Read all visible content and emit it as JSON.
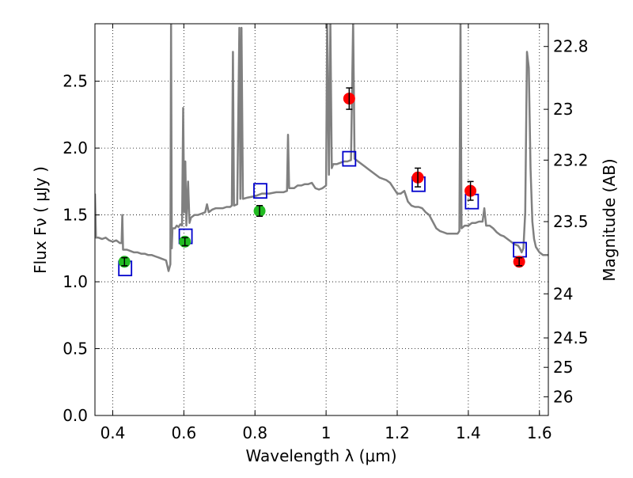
{
  "chart_data": {
    "type": "scatter",
    "xlabel": "Wavelength  λ (μm)",
    "ylabel": "Flux  Fν  ( μJy )",
    "y2label": "Magnitude (AB)",
    "xlim": [
      0.35,
      1.625
    ],
    "ylim": [
      0.0,
      2.93
    ],
    "grid": true,
    "x_ticks": [
      0.4,
      0.6,
      0.8,
      1.0,
      1.2,
      1.4,
      1.6
    ],
    "x_tick_labels": [
      "0.4",
      "0.6",
      "0.8",
      "1",
      "1.2",
      "1.4",
      "1.6"
    ],
    "y_ticks": [
      0.0,
      0.5,
      1.0,
      1.5,
      2.0,
      2.5
    ],
    "y_tick_labels": [
      "0.0",
      "0.5",
      "1.0",
      "1.5",
      "2.0",
      "2.5"
    ],
    "y2_ticks": [
      {
        "label": "22.8",
        "flux": 2.76
      },
      {
        "label": "23",
        "flux": 2.29
      },
      {
        "label": "23.2",
        "flux": 1.91
      },
      {
        "label": "23.5",
        "flux": 1.45
      },
      {
        "label": "24",
        "flux": 0.91
      },
      {
        "label": "24.5",
        "flux": 0.58
      },
      {
        "label": "25",
        "flux": 0.36
      },
      {
        "label": "26",
        "flux": 0.14
      }
    ],
    "series": [
      {
        "type": "line",
        "color": "#808080",
        "points": [
          [
            0.35,
            1.66
          ],
          [
            0.353,
            1.33
          ],
          [
            0.36,
            1.33
          ],
          [
            0.37,
            1.32
          ],
          [
            0.38,
            1.33
          ],
          [
            0.39,
            1.31
          ],
          [
            0.4,
            1.3
          ],
          [
            0.41,
            1.31
          ],
          [
            0.42,
            1.29
          ],
          [
            0.425,
            1.29
          ],
          [
            0.427,
            1.5
          ],
          [
            0.429,
            1.24
          ],
          [
            0.44,
            1.24
          ],
          [
            0.45,
            1.23
          ],
          [
            0.46,
            1.22
          ],
          [
            0.47,
            1.22
          ],
          [
            0.48,
            1.21
          ],
          [
            0.49,
            1.21
          ],
          [
            0.5,
            1.2
          ],
          [
            0.51,
            1.2
          ],
          [
            0.52,
            1.19
          ],
          [
            0.53,
            1.18
          ],
          [
            0.54,
            1.17
          ],
          [
            0.55,
            1.16
          ],
          [
            0.557,
            1.08
          ],
          [
            0.562,
            1.13
          ],
          [
            0.564,
            2.95
          ],
          [
            0.566,
            1.25
          ],
          [
            0.568,
            1.4
          ],
          [
            0.575,
            1.4
          ],
          [
            0.58,
            1.42
          ],
          [
            0.585,
            1.41
          ],
          [
            0.59,
            1.43
          ],
          [
            0.595,
            1.42
          ],
          [
            0.598,
            2.3
          ],
          [
            0.601,
            1.52
          ],
          [
            0.604,
            1.9
          ],
          [
            0.607,
            1.42
          ],
          [
            0.612,
            1.75
          ],
          [
            0.616,
            1.44
          ],
          [
            0.62,
            1.48
          ],
          [
            0.63,
            1.5
          ],
          [
            0.64,
            1.5
          ],
          [
            0.65,
            1.51
          ],
          [
            0.66,
            1.52
          ],
          [
            0.665,
            1.58
          ],
          [
            0.67,
            1.52
          ],
          [
            0.68,
            1.54
          ],
          [
            0.69,
            1.55
          ],
          [
            0.7,
            1.55
          ],
          [
            0.71,
            1.55
          ],
          [
            0.72,
            1.56
          ],
          [
            0.73,
            1.56
          ],
          [
            0.735,
            1.57
          ],
          [
            0.738,
            2.72
          ],
          [
            0.741,
            1.57
          ],
          [
            0.75,
            1.58
          ],
          [
            0.756,
            2.9
          ],
          [
            0.759,
            1.62
          ],
          [
            0.762,
            2.9
          ],
          [
            0.766,
            1.62
          ],
          [
            0.78,
            1.63
          ],
          [
            0.8,
            1.64
          ],
          [
            0.82,
            1.66
          ],
          [
            0.84,
            1.66
          ],
          [
            0.86,
            1.67
          ],
          [
            0.88,
            1.67
          ],
          [
            0.89,
            1.68
          ],
          [
            0.893,
            2.1
          ],
          [
            0.896,
            1.7
          ],
          [
            0.91,
            1.7
          ],
          [
            0.92,
            1.72
          ],
          [
            0.93,
            1.72
          ],
          [
            0.94,
            1.73
          ],
          [
            0.95,
            1.73
          ],
          [
            0.96,
            1.74
          ],
          [
            0.97,
            1.7
          ],
          [
            0.98,
            1.69
          ],
          [
            0.99,
            1.7
          ],
          [
            1.0,
            1.72
          ],
          [
            1.003,
            2.95
          ],
          [
            1.008,
            1.8
          ],
          [
            1.012,
            2.95
          ],
          [
            1.016,
            1.85
          ],
          [
            1.02,
            1.88
          ],
          [
            1.03,
            1.88
          ],
          [
            1.04,
            1.89
          ],
          [
            1.05,
            1.9
          ],
          [
            1.06,
            1.9
          ],
          [
            1.07,
            1.91
          ],
          [
            1.076,
            2.95
          ],
          [
            1.08,
            1.92
          ],
          [
            1.09,
            1.9
          ],
          [
            1.1,
            1.88
          ],
          [
            1.11,
            1.86
          ],
          [
            1.12,
            1.84
          ],
          [
            1.13,
            1.82
          ],
          [
            1.14,
            1.8
          ],
          [
            1.15,
            1.78
          ],
          [
            1.16,
            1.77
          ],
          [
            1.17,
            1.76
          ],
          [
            1.18,
            1.74
          ],
          [
            1.19,
            1.7
          ],
          [
            1.2,
            1.66
          ],
          [
            1.21,
            1.66
          ],
          [
            1.22,
            1.68
          ],
          [
            1.23,
            1.6
          ],
          [
            1.24,
            1.57
          ],
          [
            1.25,
            1.56
          ],
          [
            1.26,
            1.56
          ],
          [
            1.27,
            1.55
          ],
          [
            1.28,
            1.52
          ],
          [
            1.29,
            1.5
          ],
          [
            1.3,
            1.45
          ],
          [
            1.31,
            1.4
          ],
          [
            1.32,
            1.38
          ],
          [
            1.33,
            1.37
          ],
          [
            1.34,
            1.36
          ],
          [
            1.35,
            1.36
          ],
          [
            1.36,
            1.36
          ],
          [
            1.37,
            1.36
          ],
          [
            1.375,
            1.38
          ],
          [
            1.378,
            2.95
          ],
          [
            1.381,
            1.4
          ],
          [
            1.39,
            1.42
          ],
          [
            1.4,
            1.42
          ],
          [
            1.41,
            1.44
          ],
          [
            1.42,
            1.44
          ],
          [
            1.43,
            1.45
          ],
          [
            1.44,
            1.45
          ],
          [
            1.445,
            1.55
          ],
          [
            1.45,
            1.42
          ],
          [
            1.46,
            1.42
          ],
          [
            1.47,
            1.4
          ],
          [
            1.48,
            1.37
          ],
          [
            1.49,
            1.35
          ],
          [
            1.5,
            1.34
          ],
          [
            1.51,
            1.32
          ],
          [
            1.52,
            1.3
          ],
          [
            1.53,
            1.28
          ],
          [
            1.54,
            1.27
          ],
          [
            1.545,
            1.25
          ],
          [
            1.55,
            1.22
          ],
          [
            1.555,
            1.25
          ],
          [
            1.56,
            1.52
          ],
          [
            1.565,
            2.72
          ],
          [
            1.57,
            2.6
          ],
          [
            1.575,
            1.85
          ],
          [
            1.58,
            1.45
          ],
          [
            1.585,
            1.32
          ],
          [
            1.59,
            1.26
          ],
          [
            1.6,
            1.22
          ],
          [
            1.61,
            1.2
          ],
          [
            1.625,
            1.2
          ]
        ]
      },
      {
        "type": "open-square",
        "color": "#0000cc",
        "points": [
          [
            0.435,
            1.1
          ],
          [
            0.605,
            1.34
          ],
          [
            0.815,
            1.68
          ],
          [
            1.065,
            1.92
          ],
          [
            1.26,
            1.73
          ],
          [
            1.41,
            1.6
          ],
          [
            1.545,
            1.24
          ]
        ]
      },
      {
        "type": "point",
        "color": "#22bb22",
        "points": [
          {
            "x": 0.433,
            "y": 1.15,
            "err": 0.03
          },
          {
            "x": 0.603,
            "y": 1.3,
            "err": 0.03
          },
          {
            "x": 0.813,
            "y": 1.53,
            "err": 0.04
          }
        ]
      },
      {
        "type": "point",
        "color": "#ff0000",
        "points": [
          {
            "x": 1.065,
            "y": 2.37,
            "err": 0.08
          },
          {
            "x": 1.258,
            "y": 1.78,
            "err": 0.07
          },
          {
            "x": 1.406,
            "y": 1.68,
            "err": 0.07
          },
          {
            "x": 1.543,
            "y": 1.15,
            "err": 0.03
          }
        ]
      }
    ]
  }
}
